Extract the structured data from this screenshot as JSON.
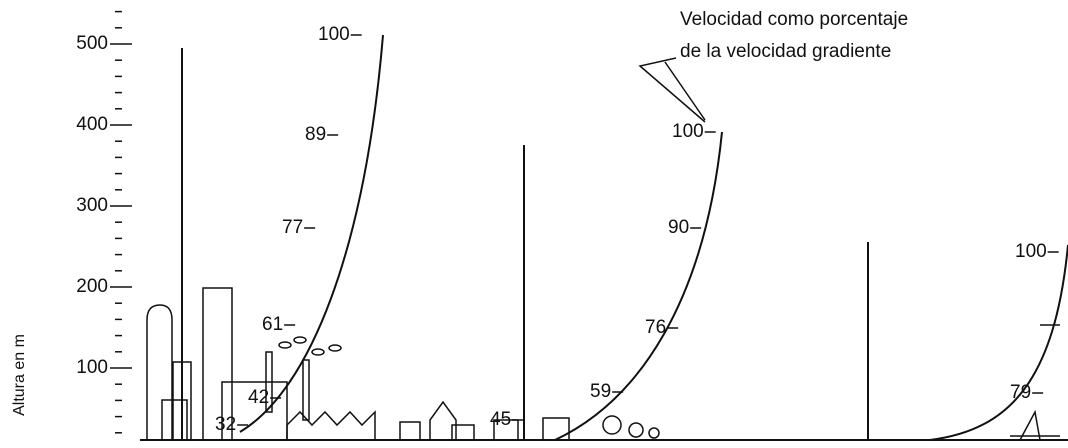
{
  "axis": {
    "label": "Altura en m",
    "ticks": [
      "500",
      "400",
      "300",
      "200",
      "100"
    ]
  },
  "annotation": {
    "lines": [
      "Velocidad como porcentaje",
      "de la velocidad gradiente"
    ]
  },
  "profiles": [
    {
      "labels": [
        "100",
        "89",
        "77",
        "61",
        "42",
        "32"
      ]
    },
    {
      "labels": [
        "100",
        "90",
        "76",
        "59",
        "45"
      ]
    },
    {
      "labels": [
        "100",
        "79"
      ]
    }
  ]
}
